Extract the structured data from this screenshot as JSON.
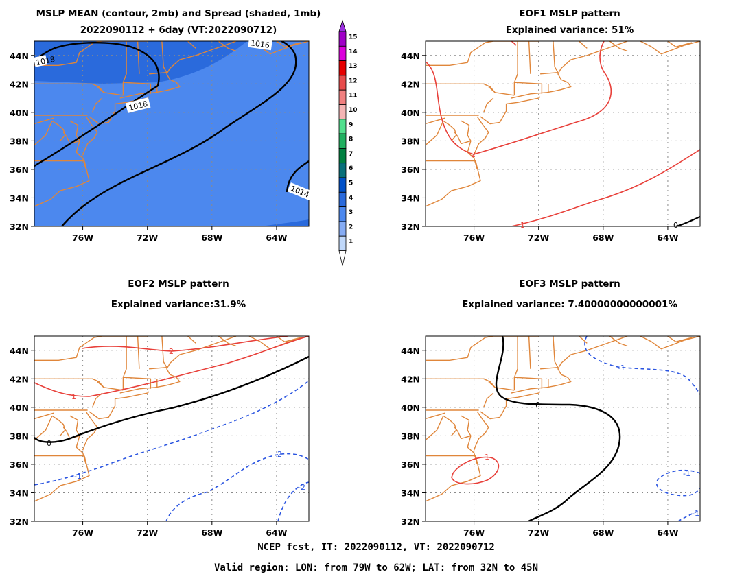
{
  "panels": [
    {
      "id": "mean",
      "title_lines": [
        "MSLP MEAN (contour, 2mb) and Spread (shaded, 1mb)",
        "2022090112 + 6day (VT:2022090712)"
      ],
      "contour_labels": [
        "1018",
        "1018",
        "1016",
        "1014"
      ]
    },
    {
      "id": "eof1",
      "title_lines": [
        "EOF1 MSLP pattern",
        "Explained variance: 51%"
      ],
      "contour_labels": [
        "2",
        "1",
        "0"
      ]
    },
    {
      "id": "eof2",
      "title_lines": [
        "EOF2 MSLP pattern",
        "Explained variance:31.9%"
      ],
      "contour_labels": [
        "2",
        "1",
        "0",
        "-1",
        "-2",
        "-2"
      ]
    },
    {
      "id": "eof3",
      "title_lines": [
        "EOF3 MSLP pattern",
        "Explained variance: 7.40000000000001%"
      ],
      "contour_labels": [
        "0",
        "-1",
        "1",
        "-1",
        "-1"
      ]
    }
  ],
  "axes": {
    "lon_ticks": [
      "76W",
      "72W",
      "68W",
      "64W"
    ],
    "lat_ticks": [
      "44N",
      "42N",
      "40N",
      "38N",
      "36N",
      "34N",
      "32N"
    ]
  },
  "colorbar": {
    "labels": [
      "15",
      "14",
      "13",
      "12",
      "11",
      "10",
      "9",
      "8",
      "7",
      "6",
      "5",
      "4",
      "3",
      "2",
      "1"
    ],
    "colors": [
      "#a000c8",
      "#dc00dc",
      "#e60000",
      "#e84c4c",
      "#f08080",
      "#f4b4b4",
      "#52e08e",
      "#20b060",
      "#008040",
      "#08707a",
      "#0050c8",
      "#2a6adc",
      "#4c88ee",
      "#86acf4",
      "#c0d8fa"
    ]
  },
  "colors": {
    "coast": "#e0863a",
    "positive": "#e8403a",
    "negative": "#2a54e0",
    "zero": "#000000",
    "spread_3": "#4c88ee",
    "spread_4": "#2a6adc"
  },
  "footer": {
    "line1": "NCEP fcst, IT: 2022090112, VT: 2022090712",
    "line2": "Valid region: LON: from 79W to 62W; LAT: from 32N to 45N"
  }
}
